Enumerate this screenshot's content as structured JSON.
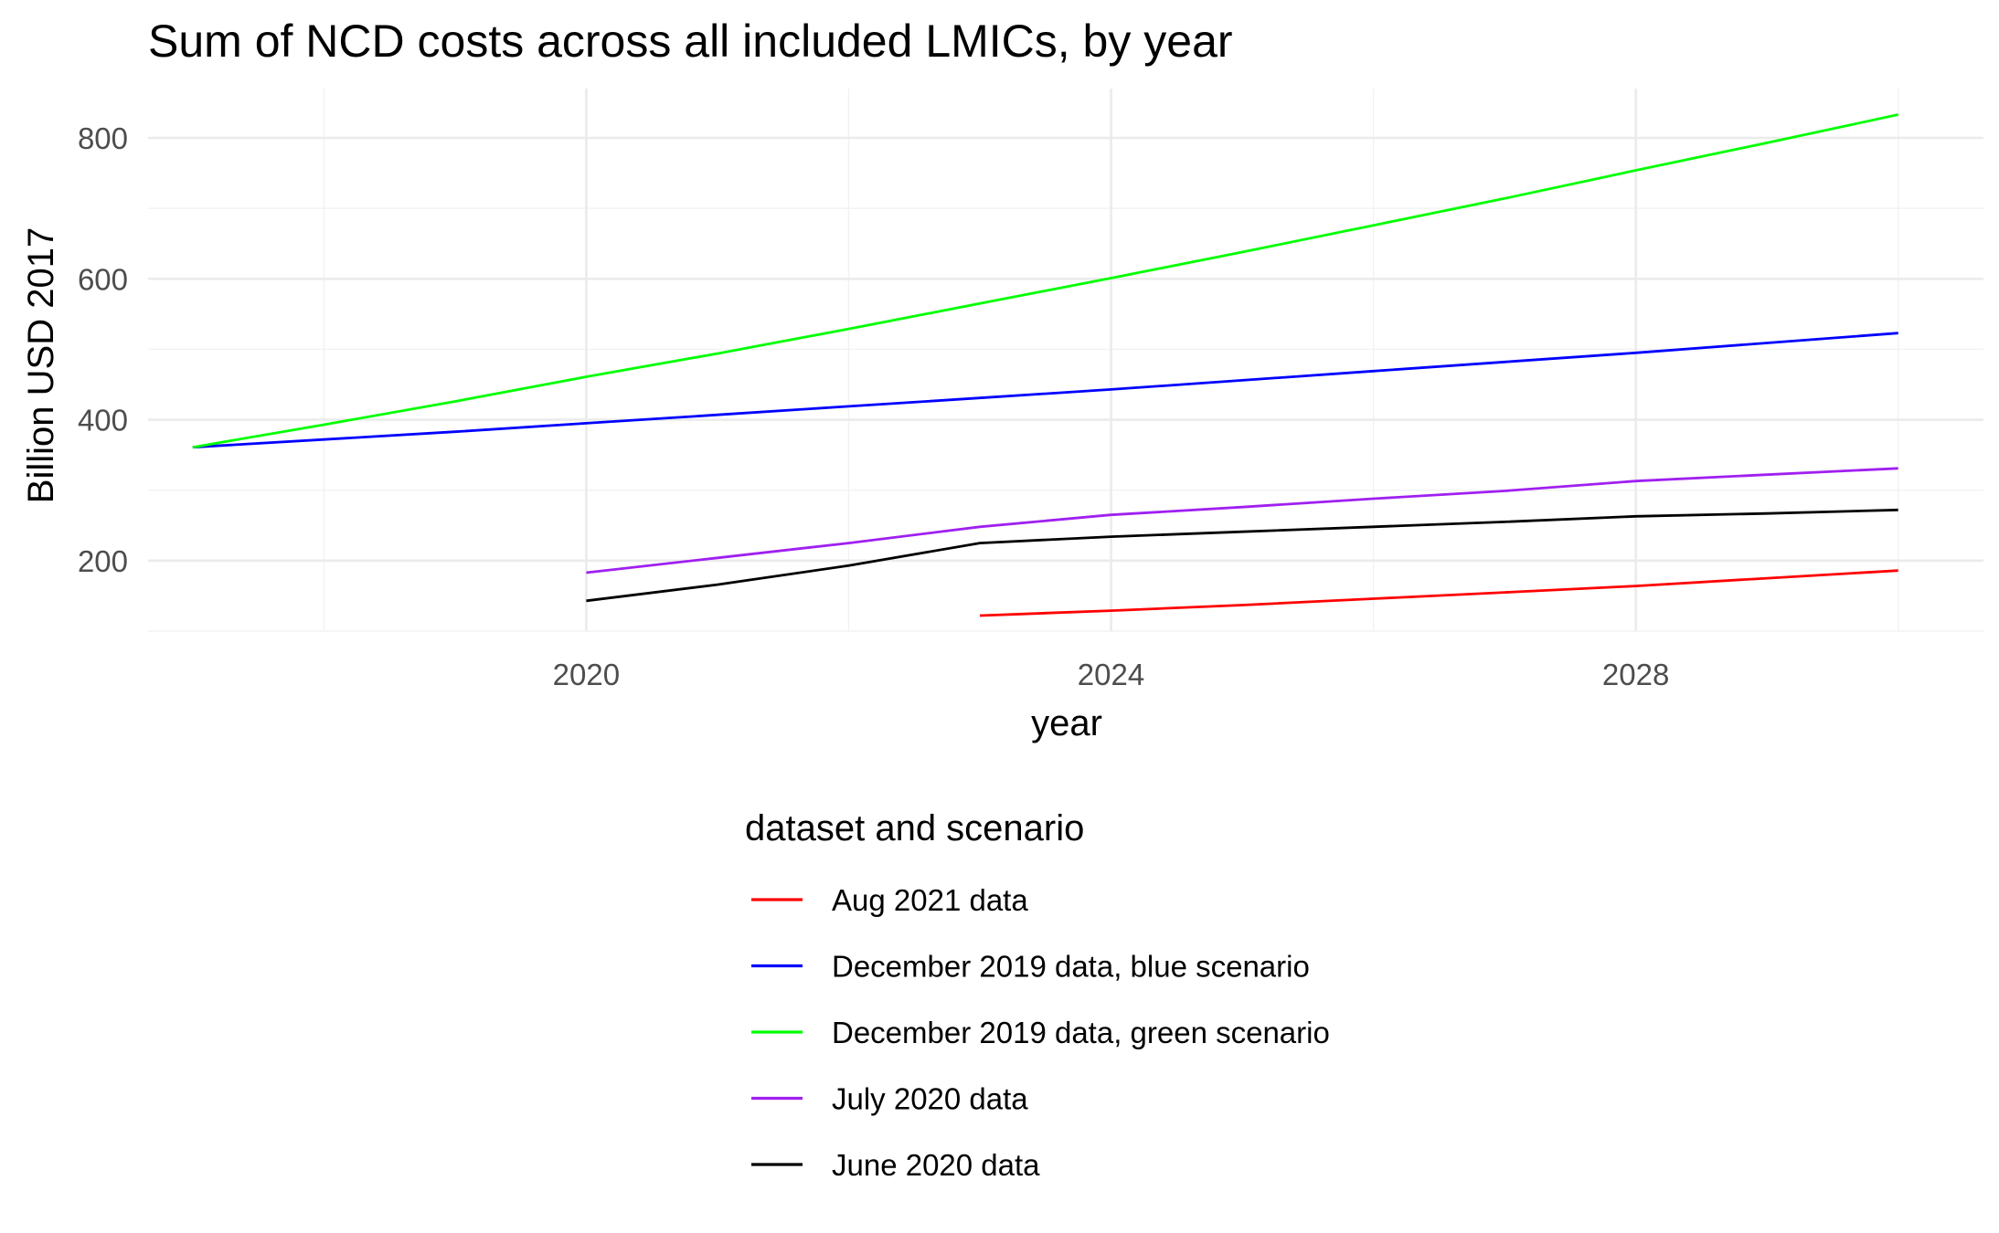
{
  "chart_data": {
    "type": "line",
    "title": "Sum of NCD costs across all included LMICs, by year",
    "xlabel": "year",
    "ylabel": "Billion USD 2017",
    "xlim": [
      2016.66,
      2030.65
    ],
    "ylim": [
      100,
      870
    ],
    "x_ticks": [
      2020,
      2024,
      2028
    ],
    "x_tick_labels": [
      "2020",
      "2024",
      "2028"
    ],
    "x_minor_ticks": [
      2018,
      2022,
      2026,
      2030
    ],
    "y_ticks": [
      200,
      400,
      600,
      800
    ],
    "y_tick_labels": [
      "200",
      "400",
      "600",
      "800"
    ],
    "y_minor_ticks": [
      100,
      300,
      500,
      700
    ],
    "grid": true,
    "legend": {
      "title": "dataset and scenario",
      "position": "bottom"
    },
    "series": [
      {
        "name": "Aug 2021 data",
        "color": "#ff0000",
        "points": [
          [
            2023,
            122
          ],
          [
            2024,
            129
          ],
          [
            2025,
            137
          ],
          [
            2026,
            146
          ],
          [
            2027,
            155
          ],
          [
            2028,
            164
          ],
          [
            2029,
            175
          ],
          [
            2030,
            186
          ]
        ]
      },
      {
        "name": "December 2019 data, blue scenario",
        "color": "#0000ff",
        "points": [
          [
            2017,
            361
          ],
          [
            2018,
            372
          ],
          [
            2019,
            383
          ],
          [
            2020,
            395
          ],
          [
            2021,
            407
          ],
          [
            2022,
            419
          ],
          [
            2023,
            431
          ],
          [
            2024,
            443
          ],
          [
            2025,
            456
          ],
          [
            2026,
            469
          ],
          [
            2027,
            482
          ],
          [
            2028,
            495
          ],
          [
            2029,
            509
          ],
          [
            2030,
            523
          ]
        ]
      },
      {
        "name": "December 2019 data, green scenario",
        "color": "#00ff00",
        "points": [
          [
            2017,
            361
          ],
          [
            2018,
            393
          ],
          [
            2019,
            426
          ],
          [
            2020,
            461
          ],
          [
            2021,
            494
          ],
          [
            2022,
            529
          ],
          [
            2023,
            565
          ],
          [
            2024,
            601
          ],
          [
            2025,
            638
          ],
          [
            2026,
            676
          ],
          [
            2027,
            714
          ],
          [
            2028,
            754
          ],
          [
            2029,
            793
          ],
          [
            2030,
            833
          ]
        ]
      },
      {
        "name": "July 2020 data",
        "color": "#a020f0",
        "points": [
          [
            2020,
            183
          ],
          [
            2021,
            204
          ],
          [
            2022,
            225
          ],
          [
            2023,
            248
          ],
          [
            2024,
            265
          ],
          [
            2025,
            276
          ],
          [
            2026,
            288
          ],
          [
            2027,
            299
          ],
          [
            2028,
            313
          ],
          [
            2029,
            322
          ],
          [
            2030,
            331
          ]
        ]
      },
      {
        "name": "June 2020 data",
        "color": "#000000",
        "points": [
          [
            2020,
            143
          ],
          [
            2021,
            166
          ],
          [
            2022,
            193
          ],
          [
            2023,
            225
          ],
          [
            2024,
            234
          ],
          [
            2025,
            241
          ],
          [
            2026,
            248
          ],
          [
            2027,
            255
          ],
          [
            2028,
            263
          ],
          [
            2029,
            267
          ],
          [
            2030,
            272
          ]
        ]
      }
    ]
  }
}
